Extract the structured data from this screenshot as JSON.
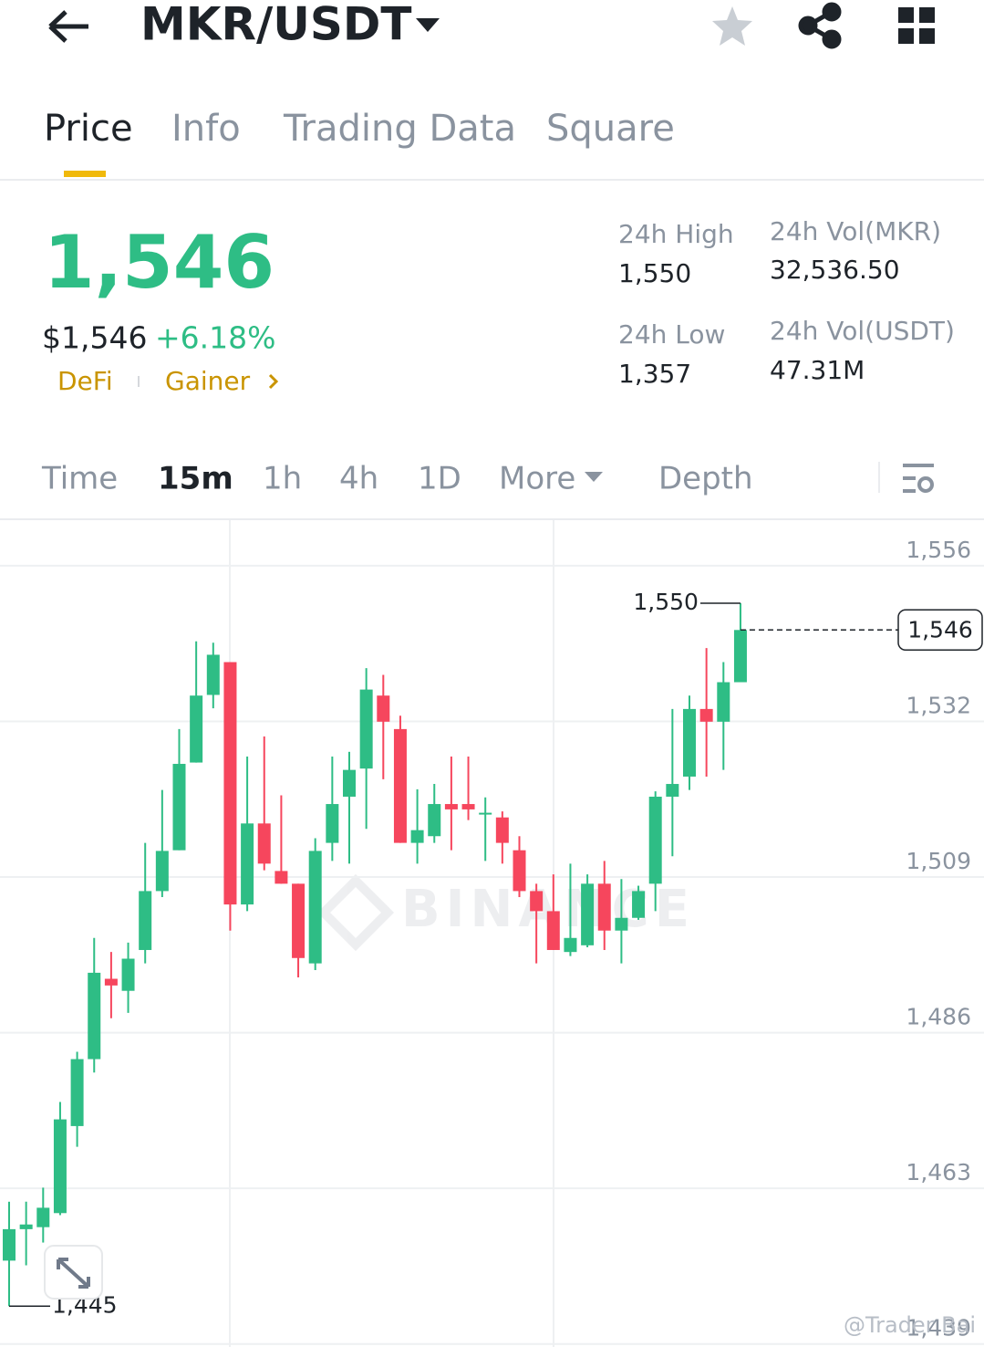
{
  "header": {
    "title": "MKR/USDT"
  },
  "tabs": [
    "Price",
    "Info",
    "Trading Data",
    "Square"
  ],
  "ticker": {
    "price": "1,546",
    "price_usd": "$1,546",
    "change": "+6.18%",
    "tags": [
      "DeFi",
      "Gainer"
    ],
    "stats": [
      {
        "label": "24h High",
        "value": "1,550"
      },
      {
        "label": "24h Vol(MKR)",
        "value": "32,536.50"
      },
      {
        "label": "24h Low",
        "value": "1,357"
      },
      {
        "label": "24h Vol(USDT)",
        "value": "47.31M"
      }
    ]
  },
  "intervals": [
    "Time",
    "15m",
    "1h",
    "4h",
    "1D",
    "More",
    "Depth"
  ],
  "chart_data": {
    "type": "candlestick",
    "watermark": "BINANCE",
    "up_color": "#2ebd85",
    "down_color": "#f6465d",
    "grid": true,
    "ylim": [
      1438.9,
      1562.4
    ],
    "yticks": [
      {
        "value": 1555.6,
        "label": "1,556"
      },
      {
        "value": 1532.35,
        "label": "1,532"
      },
      {
        "value": 1509.1,
        "label": "1,509"
      },
      {
        "value": 1485.85,
        "label": "1,486"
      },
      {
        "value": 1462.6,
        "label": "1,463"
      },
      {
        "value": 1439.35,
        "label": "1,439"
      }
    ],
    "open": [
      1451.8,
      1456.5,
      1456.8,
      1458.9,
      1471.9,
      1481.9,
      1493.9,
      1492.1,
      1498.2,
      1507.0,
      1513.1,
      1526.2,
      1536.3,
      1541.2,
      1505.0,
      1517.1,
      1510.0,
      1508.1,
      1496.2,
      1514.2,
      1521.1,
      1525.3,
      1536.2,
      1531.2,
      1514.2,
      1515.2,
      1520.0,
      1520.0,
      1518.6,
      1518.0,
      1513.1,
      1507.0,
      1504.0,
      1497.9,
      1498.9,
      1508.1,
      1501.1,
      1503.0,
      1508.1,
      1521.1,
      1524.1,
      1534.2,
      1532.3,
      1538.2
    ],
    "high": [
      1460.6,
      1460.6,
      1462.7,
      1475.5,
      1483.0,
      1500.0,
      1497.9,
      1499.3,
      1514.2,
      1522.1,
      1531.2,
      1544.3,
      1544.1,
      1541.2,
      1527.1,
      1530.1,
      1521.3,
      1508.1,
      1514.9,
      1527.1,
      1527.8,
      1540.3,
      1539.3,
      1533.2,
      1522.2,
      1523.0,
      1527.1,
      1527.1,
      1521.0,
      1518.9,
      1515.2,
      1508.1,
      1509.5,
      1511.1,
      1509.5,
      1511.5,
      1508.8,
      1507.8,
      1521.9,
      1534.2,
      1536.2,
      1543.3,
      1541.2,
      1550
    ],
    "low": [
      1445,
      1451.1,
      1454.5,
      1458.6,
      1468.8,
      1479.9,
      1488.0,
      1488.8,
      1496.2,
      1506.1,
      1513.1,
      1526.2,
      1534.3,
      1501.1,
      1504.0,
      1510.1,
      1508.1,
      1494.1,
      1495.2,
      1511.5,
      1511.1,
      1516.3,
      1523.7,
      1514.2,
      1511.1,
      1514.2,
      1513.1,
      1517.6,
      1511.5,
      1511.1,
      1506.1,
      1496.2,
      1498.2,
      1497.3,
      1498.6,
      1498.2,
      1496.2,
      1502.7,
      1504.0,
      1512.2,
      1522.1,
      1524.1,
      1525.1,
      1538.2
    ],
    "close": [
      1456.5,
      1457.2,
      1459.7,
      1472.9,
      1481.9,
      1494.8,
      1492.9,
      1496.9,
      1507.0,
      1513.0,
      1526.0,
      1536.2,
      1542.3,
      1505.0,
      1517.1,
      1511.1,
      1508.1,
      1497.0,
      1513.0,
      1520.0,
      1525.1,
      1537.1,
      1532.3,
      1514.2,
      1516.1,
      1520.0,
      1519.2,
      1519.2,
      1518.7,
      1514.2,
      1507.0,
      1504.0,
      1498.2,
      1500.0,
      1508.1,
      1501.1,
      1503.0,
      1507.0,
      1521.1,
      1523.0,
      1534.2,
      1532.3,
      1538.2,
      1546
    ],
    "max_label": {
      "value": 1550,
      "label": "1,550"
    },
    "min_label": {
      "value": 1445,
      "label": "1,445"
    },
    "last_price": {
      "value": 1546,
      "label": "1,546"
    }
  },
  "credit": "@Trader Bai"
}
